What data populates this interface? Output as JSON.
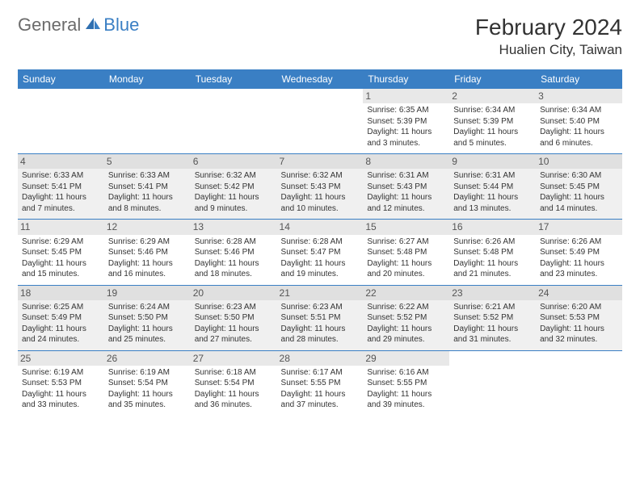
{
  "brand": {
    "part1": "General",
    "part2": "Blue"
  },
  "title": "February 2024",
  "location": "Hualien City, Taiwan",
  "colors": {
    "header_bg": "#3a7fc4",
    "header_text": "#ffffff",
    "row_even_bg": "#f0f0f0",
    "row_odd_bg": "#ffffff",
    "daynum_bg": "#e8e8e8",
    "border": "#3a7fc4",
    "text": "#333333"
  },
  "weekdays": [
    "Sunday",
    "Monday",
    "Tuesday",
    "Wednesday",
    "Thursday",
    "Friday",
    "Saturday"
  ],
  "weeks": [
    [
      null,
      null,
      null,
      null,
      {
        "n": "1",
        "sr": "Sunrise: 6:35 AM",
        "ss": "Sunset: 5:39 PM",
        "d1": "Daylight: 11 hours",
        "d2": "and 3 minutes."
      },
      {
        "n": "2",
        "sr": "Sunrise: 6:34 AM",
        "ss": "Sunset: 5:39 PM",
        "d1": "Daylight: 11 hours",
        "d2": "and 5 minutes."
      },
      {
        "n": "3",
        "sr": "Sunrise: 6:34 AM",
        "ss": "Sunset: 5:40 PM",
        "d1": "Daylight: 11 hours",
        "d2": "and 6 minutes."
      }
    ],
    [
      {
        "n": "4",
        "sr": "Sunrise: 6:33 AM",
        "ss": "Sunset: 5:41 PM",
        "d1": "Daylight: 11 hours",
        "d2": "and 7 minutes."
      },
      {
        "n": "5",
        "sr": "Sunrise: 6:33 AM",
        "ss": "Sunset: 5:41 PM",
        "d1": "Daylight: 11 hours",
        "d2": "and 8 minutes."
      },
      {
        "n": "6",
        "sr": "Sunrise: 6:32 AM",
        "ss": "Sunset: 5:42 PM",
        "d1": "Daylight: 11 hours",
        "d2": "and 9 minutes."
      },
      {
        "n": "7",
        "sr": "Sunrise: 6:32 AM",
        "ss": "Sunset: 5:43 PM",
        "d1": "Daylight: 11 hours",
        "d2": "and 10 minutes."
      },
      {
        "n": "8",
        "sr": "Sunrise: 6:31 AM",
        "ss": "Sunset: 5:43 PM",
        "d1": "Daylight: 11 hours",
        "d2": "and 12 minutes."
      },
      {
        "n": "9",
        "sr": "Sunrise: 6:31 AM",
        "ss": "Sunset: 5:44 PM",
        "d1": "Daylight: 11 hours",
        "d2": "and 13 minutes."
      },
      {
        "n": "10",
        "sr": "Sunrise: 6:30 AM",
        "ss": "Sunset: 5:45 PM",
        "d1": "Daylight: 11 hours",
        "d2": "and 14 minutes."
      }
    ],
    [
      {
        "n": "11",
        "sr": "Sunrise: 6:29 AM",
        "ss": "Sunset: 5:45 PM",
        "d1": "Daylight: 11 hours",
        "d2": "and 15 minutes."
      },
      {
        "n": "12",
        "sr": "Sunrise: 6:29 AM",
        "ss": "Sunset: 5:46 PM",
        "d1": "Daylight: 11 hours",
        "d2": "and 16 minutes."
      },
      {
        "n": "13",
        "sr": "Sunrise: 6:28 AM",
        "ss": "Sunset: 5:46 PM",
        "d1": "Daylight: 11 hours",
        "d2": "and 18 minutes."
      },
      {
        "n": "14",
        "sr": "Sunrise: 6:28 AM",
        "ss": "Sunset: 5:47 PM",
        "d1": "Daylight: 11 hours",
        "d2": "and 19 minutes."
      },
      {
        "n": "15",
        "sr": "Sunrise: 6:27 AM",
        "ss": "Sunset: 5:48 PM",
        "d1": "Daylight: 11 hours",
        "d2": "and 20 minutes."
      },
      {
        "n": "16",
        "sr": "Sunrise: 6:26 AM",
        "ss": "Sunset: 5:48 PM",
        "d1": "Daylight: 11 hours",
        "d2": "and 21 minutes."
      },
      {
        "n": "17",
        "sr": "Sunrise: 6:26 AM",
        "ss": "Sunset: 5:49 PM",
        "d1": "Daylight: 11 hours",
        "d2": "and 23 minutes."
      }
    ],
    [
      {
        "n": "18",
        "sr": "Sunrise: 6:25 AM",
        "ss": "Sunset: 5:49 PM",
        "d1": "Daylight: 11 hours",
        "d2": "and 24 minutes."
      },
      {
        "n": "19",
        "sr": "Sunrise: 6:24 AM",
        "ss": "Sunset: 5:50 PM",
        "d1": "Daylight: 11 hours",
        "d2": "and 25 minutes."
      },
      {
        "n": "20",
        "sr": "Sunrise: 6:23 AM",
        "ss": "Sunset: 5:50 PM",
        "d1": "Daylight: 11 hours",
        "d2": "and 27 minutes."
      },
      {
        "n": "21",
        "sr": "Sunrise: 6:23 AM",
        "ss": "Sunset: 5:51 PM",
        "d1": "Daylight: 11 hours",
        "d2": "and 28 minutes."
      },
      {
        "n": "22",
        "sr": "Sunrise: 6:22 AM",
        "ss": "Sunset: 5:52 PM",
        "d1": "Daylight: 11 hours",
        "d2": "and 29 minutes."
      },
      {
        "n": "23",
        "sr": "Sunrise: 6:21 AM",
        "ss": "Sunset: 5:52 PM",
        "d1": "Daylight: 11 hours",
        "d2": "and 31 minutes."
      },
      {
        "n": "24",
        "sr": "Sunrise: 6:20 AM",
        "ss": "Sunset: 5:53 PM",
        "d1": "Daylight: 11 hours",
        "d2": "and 32 minutes."
      }
    ],
    [
      {
        "n": "25",
        "sr": "Sunrise: 6:19 AM",
        "ss": "Sunset: 5:53 PM",
        "d1": "Daylight: 11 hours",
        "d2": "and 33 minutes."
      },
      {
        "n": "26",
        "sr": "Sunrise: 6:19 AM",
        "ss": "Sunset: 5:54 PM",
        "d1": "Daylight: 11 hours",
        "d2": "and 35 minutes."
      },
      {
        "n": "27",
        "sr": "Sunrise: 6:18 AM",
        "ss": "Sunset: 5:54 PM",
        "d1": "Daylight: 11 hours",
        "d2": "and 36 minutes."
      },
      {
        "n": "28",
        "sr": "Sunrise: 6:17 AM",
        "ss": "Sunset: 5:55 PM",
        "d1": "Daylight: 11 hours",
        "d2": "and 37 minutes."
      },
      {
        "n": "29",
        "sr": "Sunrise: 6:16 AM",
        "ss": "Sunset: 5:55 PM",
        "d1": "Daylight: 11 hours",
        "d2": "and 39 minutes."
      },
      null,
      null
    ]
  ]
}
